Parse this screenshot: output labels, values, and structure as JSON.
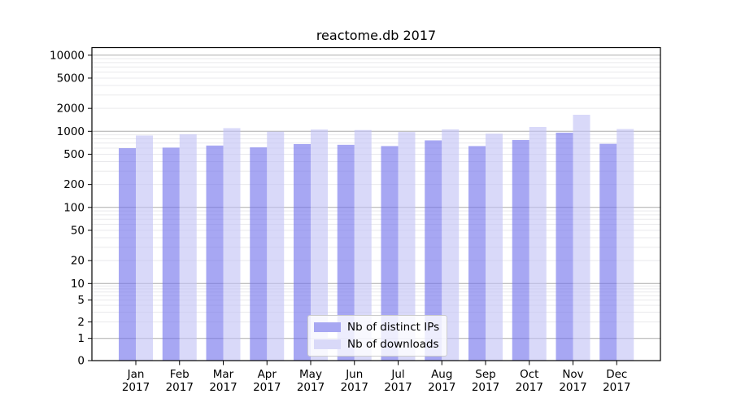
{
  "title": "reactome.db 2017",
  "legend": {
    "items": [
      {
        "label": "Nb of distinct IPs",
        "color": "#a7a7f2"
      },
      {
        "label": "Nb of downloads",
        "color": "#d9d9f8"
      }
    ]
  },
  "chart_data": {
    "type": "bar",
    "title": "reactome.db 2017",
    "categories": [
      "Jan",
      "Feb",
      "Mar",
      "Apr",
      "May",
      "Jun",
      "Jul",
      "Aug",
      "Sep",
      "Oct",
      "Nov",
      "Dec"
    ],
    "year_label": "2017",
    "series": [
      {
        "name": "Nb of distinct IPs",
        "color": "rgba(113,113,235,0.62)",
        "values": [
          600,
          610,
          650,
          615,
          680,
          665,
          640,
          760,
          640,
          770,
          960,
          685
        ]
      },
      {
        "name": "Nb of downloads",
        "color": "rgba(193,193,246,0.62)",
        "values": [
          880,
          915,
          1100,
          990,
          1055,
          1040,
          980,
          1060,
          930,
          1140,
          1650,
          1070
        ]
      }
    ],
    "y_axis": {
      "scale": "symlog",
      "ticks": [
        0,
        1,
        2,
        5,
        10,
        20,
        50,
        100,
        200,
        500,
        1000,
        2000,
        5000,
        10000
      ],
      "range": [
        0,
        10000
      ]
    },
    "grid": true,
    "legend_position": "lower center"
  }
}
